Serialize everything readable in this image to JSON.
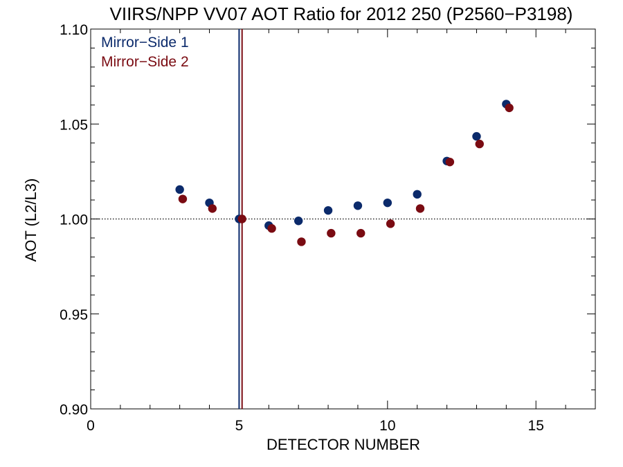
{
  "chart_data": {
    "type": "scatter",
    "title": "VIIRS/NPP VV07 AOT Ratio for 2012 250 (P2560−P3198)",
    "xlabel": "DETECTOR NUMBER",
    "ylabel": "AOT (L2/L3)",
    "xlim": [
      0,
      17
    ],
    "ylim": [
      0.9,
      1.1
    ],
    "xticks": [
      0,
      5,
      10,
      15
    ],
    "xtick_labels": [
      "0",
      "5",
      "10",
      "15"
    ],
    "yticks": [
      0.9,
      0.95,
      1.0,
      1.05,
      1.1
    ],
    "ytick_labels": [
      "0.90",
      "0.95",
      "1.00",
      "1.05",
      "1.10"
    ],
    "reference_line_y": 1.0,
    "grid": false,
    "legend_position": "top-left",
    "series": [
      {
        "name": "Mirror−Side 1",
        "color": "#0b2a6b",
        "reference_x": 5,
        "x": [
          3,
          4,
          5,
          6,
          7,
          8,
          9,
          10,
          11,
          12,
          13,
          14
        ],
        "y": [
          1.0155,
          1.0085,
          1.0,
          0.9965,
          0.999,
          1.0045,
          1.007,
          1.0085,
          1.013,
          1.0305,
          1.0435,
          1.0605
        ]
      },
      {
        "name": "Mirror−Side 2",
        "color": "#7a0b12",
        "reference_x": 5.1,
        "x": [
          3.1,
          4.1,
          5.1,
          6.1,
          7.1,
          8.1,
          9.1,
          10.1,
          11.1,
          12.1,
          13.1,
          14.1
        ],
        "y": [
          1.0105,
          1.0055,
          1.0,
          0.995,
          0.988,
          0.9925,
          0.9925,
          0.9975,
          1.0055,
          1.03,
          1.0395,
          1.0585
        ]
      }
    ]
  }
}
